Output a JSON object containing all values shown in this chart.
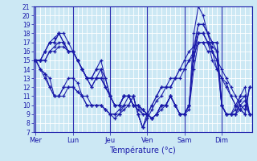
{
  "bg_color": "#cce8f4",
  "grid_color": "#ffffff",
  "line_color": "#1a1aaa",
  "ylim": [
    7,
    21
  ],
  "yticks": [
    7,
    8,
    9,
    10,
    11,
    12,
    13,
    14,
    15,
    16,
    17,
    18,
    19,
    20,
    21
  ],
  "xlabel": "Température (°c)",
  "day_labels": [
    "Mer",
    "Lun",
    "Jeu",
    "Ven",
    "Sam",
    "Dim"
  ],
  "n_points": 47,
  "day_tick_positions": [
    0,
    8,
    16,
    24,
    32,
    40
  ],
  "minor_grid_every": 1,
  "series": [
    [
      15,
      15,
      16,
      17,
      17.5,
      18,
      18,
      17,
      16,
      15,
      14,
      13,
      13,
      14,
      15,
      13,
      11,
      10,
      10,
      11,
      11,
      10,
      10,
      9,
      9,
      8.5,
      9,
      10,
      10,
      11,
      10,
      9,
      9,
      10,
      18,
      21,
      20,
      18,
      17,
      17,
      10,
      9,
      9,
      10,
      11,
      12,
      9
    ],
    [
      15,
      15,
      16,
      17,
      17,
      18,
      17,
      16,
      16,
      15,
      14,
      13,
      13,
      14,
      14,
      13,
      11,
      10,
      10,
      11,
      11,
      10,
      10,
      9.5,
      9,
      8.5,
      9,
      10,
      10,
      11,
      10,
      9,
      9,
      10,
      16,
      19,
      19,
      18,
      17,
      17,
      10,
      9,
      9,
      9.5,
      11,
      11,
      9
    ],
    [
      15,
      15,
      16,
      17,
      17,
      18,
      17,
      16,
      16,
      15,
      14,
      13,
      13,
      13,
      14,
      12,
      11,
      10,
      10,
      11,
      11,
      10,
      10,
      9.5,
      9,
      8.5,
      9,
      10,
      10,
      11,
      10,
      9,
      9,
      10,
      16,
      18,
      18,
      17,
      17,
      16,
      10,
      9,
      9,
      9,
      10.5,
      11,
      9
    ],
    [
      15,
      15,
      15,
      16,
      16.5,
      17,
      17,
      16,
      16,
      15,
      14,
      13,
      12,
      13,
      13,
      12,
      11,
      10,
      10,
      11,
      11,
      10,
      10,
      9.5,
      9,
      8.5,
      9,
      10,
      10,
      11,
      10,
      9,
      9,
      10,
      15,
      18,
      18,
      17,
      16.5,
      16,
      10,
      9,
      9,
      9,
      10,
      10.5,
      9
    ],
    [
      15,
      15,
      15,
      16,
      16,
      16.5,
      16.5,
      16,
      16,
      15,
      14,
      13,
      12,
      13,
      13,
      12,
      11,
      10,
      10,
      11,
      11,
      10,
      9.5,
      9,
      9,
      8.5,
      9,
      9.5,
      10,
      11,
      10,
      9,
      9,
      9.5,
      14,
      17,
      17,
      16,
      16,
      15,
      10,
      9,
      9,
      9,
      9.5,
      10,
      9
    ],
    [
      15,
      14,
      13.5,
      13,
      11,
      11,
      12,
      13,
      13,
      12.5,
      11,
      11,
      10,
      10,
      10,
      9.5,
      9,
      9,
      9.5,
      10,
      11,
      11,
      9,
      7.5,
      9,
      10,
      11,
      12,
      12,
      13,
      13,
      14,
      15,
      16,
      16.5,
      19,
      19,
      18,
      16,
      15,
      14,
      13,
      12,
      11,
      10,
      9.5,
      12
    ],
    [
      15,
      14,
      13.5,
      12,
      11,
      11,
      12,
      12,
      12,
      11.5,
      11,
      10,
      10,
      10,
      10,
      9.5,
      9,
      9,
      9,
      10,
      10,
      11,
      9,
      7.5,
      9,
      10,
      11,
      12,
      12,
      12,
      13,
      14,
      14,
      15,
      16,
      18,
      18,
      17,
      16,
      14,
      13,
      12.5,
      11,
      10,
      9.5,
      9,
      12
    ],
    [
      15,
      14,
      13,
      12,
      11,
      11,
      11,
      12,
      12,
      11.5,
      11,
      10,
      10,
      10,
      10,
      9.5,
      9,
      8.5,
      9,
      9.5,
      10,
      11,
      9,
      7.5,
      8.5,
      9.5,
      10.5,
      11,
      12,
      12,
      13,
      13,
      14,
      15,
      15.5,
      17,
      17,
      17,
      15,
      14,
      13,
      12,
      11,
      10,
      9.5,
      9,
      12
    ]
  ]
}
